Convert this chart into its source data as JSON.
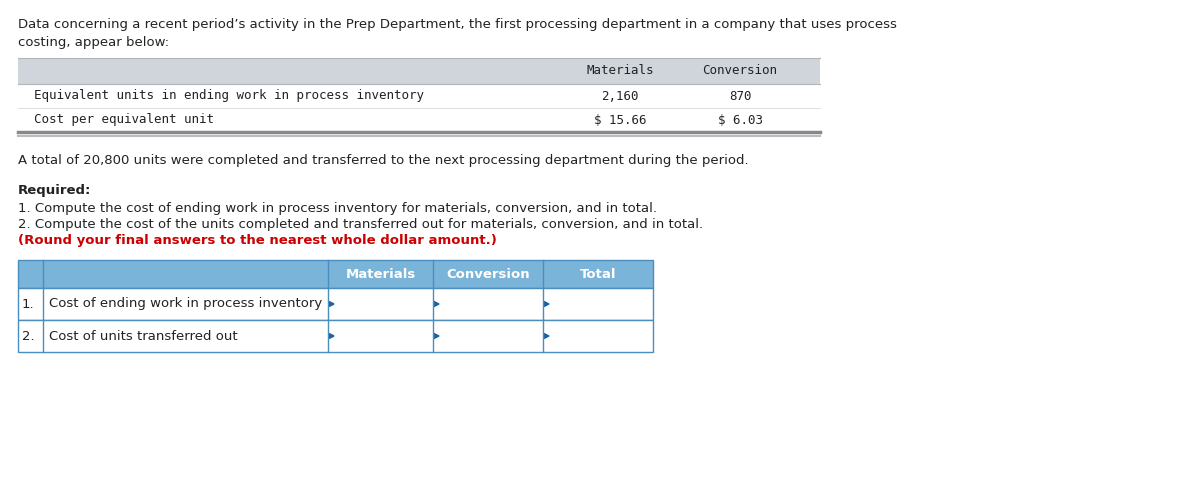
{
  "bg_color": "#ffffff",
  "intro_line1": "Data concerning a recent period’s activity in the Prep Department, the first processing department in a company that uses process",
  "intro_line2": "costing, appear below:",
  "top_table": {
    "header_bg": "#d0d4db",
    "row_bg": "#ffffff",
    "border_top": "#b0b5bb",
    "border_bottom": "#b0b5bb",
    "font": "monospace",
    "col_headers": [
      "Materials",
      "Conversion"
    ],
    "rows": [
      {
        "label": "Equivalent units in ending work in process inventory",
        "mat": "2,160",
        "con": "870"
      },
      {
        "label": "Cost per equivalent unit",
        "mat": "$ 15.66",
        "con": "$ 6.03"
      }
    ]
  },
  "middle_text": "A total of 20,800 units were completed and transferred to the next processing department during the period.",
  "required_label": "Required:",
  "req1": "1. Compute the cost of ending work in process inventory for materials, conversion, and in total.",
  "req2": "2. Compute the cost of the units completed and transferred out for materials, conversion, and in total.",
  "req3": "(Round your final answers to the nearest whole dollar amount.)",
  "req3_color": "#cc0000",
  "bottom_table": {
    "header_bg": "#7ab4d8",
    "header_text": "#ffffff",
    "border_color": "#4a8ec0",
    "row_bg": "#ffffff",
    "arrow_color": "#2060a0",
    "col_headers": [
      "Materials",
      "Conversion",
      "Total"
    ],
    "rows": [
      {
        "num": "1.",
        "label": "Cost of ending work in process inventory"
      },
      {
        "num": "2.",
        "label": "Cost of units transferred out"
      }
    ]
  }
}
